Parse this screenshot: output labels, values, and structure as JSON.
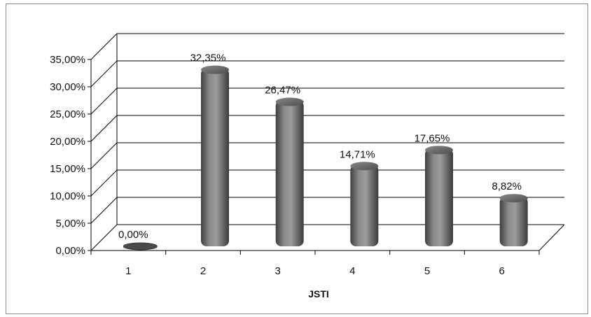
{
  "chart_data": {
    "type": "bar",
    "title": "",
    "xlabel": "JSTI",
    "ylabel": "",
    "categories": [
      "1",
      "2",
      "3",
      "4",
      "5",
      "6"
    ],
    "values": [
      0.0,
      32.35,
      26.47,
      14.71,
      17.65,
      8.82
    ],
    "data_labels": [
      "0,00%",
      "32,35%",
      "26,47%",
      "14,71%",
      "17,65%",
      "8,82%"
    ],
    "y_ticks": [
      0,
      5,
      10,
      15,
      20,
      25,
      30,
      35
    ],
    "y_tick_labels": [
      "0,00%",
      "5,00%",
      "10,00%",
      "15,00%",
      "20,00%",
      "25,00%",
      "30,00%",
      "35,00%"
    ],
    "ylim": [
      0,
      35
    ],
    "grid": true,
    "legend": "none",
    "style": "3d-cylinder",
    "colors": {
      "bar": "#6e6e6e",
      "grid": "#000000",
      "floor": "#ffffff"
    }
  }
}
